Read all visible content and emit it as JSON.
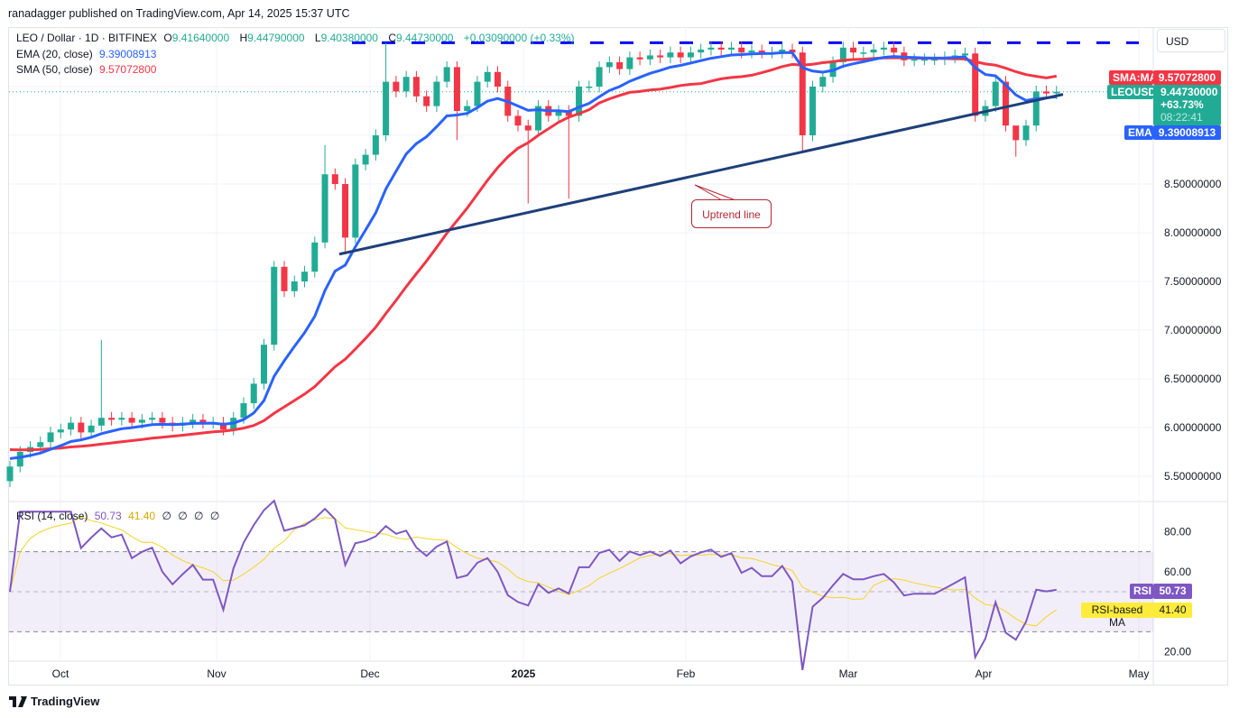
{
  "publisher": "ranadagger published on TradingView.com, Apr 14, 2025 15:37 UTC",
  "legend": {
    "symbol": "LEO / Dollar · 1D · BITFINEX",
    "o_label": "O",
    "open": "9.41640000",
    "h_label": "H",
    "high": "9.44790000",
    "l_label": "L",
    "low": "9.40380000",
    "c_label": "C",
    "close": "9.44730000",
    "change": "+0.03090000 (+0.33%)",
    "ema_label": "EMA (20, close)",
    "ema_value": "9.39008913",
    "sma_label": "SMA (50, close)",
    "sma_value": "9.57072800"
  },
  "currency": "USD",
  "price_tags": {
    "sma_name": "SMA:MA",
    "sma_value": "9.57072800",
    "symbol_name": "LEOUSD",
    "symbol_value": "9.44730000",
    "symbol_change": "+63.73%",
    "countdown": "08:22:41",
    "ema_name": "EMA",
    "ema_value": "9.39008913"
  },
  "rsi_legend": {
    "label": "RSI (14, close)",
    "rsi": "50.73",
    "ma": "41.40",
    "extras": [
      "∅",
      "∅",
      "∅",
      "∅"
    ]
  },
  "rsi_tags": {
    "rsi_name": "RSI",
    "rsi_value": "50.73",
    "ma_name": "RSI-based MA",
    "ma_value": "41.40"
  },
  "annotation": "Uptrend line",
  "brand": "TradingView",
  "colors": {
    "up": "#22ab94",
    "down": "#f23645",
    "ema": "#2962ff",
    "sma": "#f23645",
    "trend": "#1e3f7a",
    "resistance": "#0000ff",
    "rsi": "#7e57c2",
    "rsi_ma": "#f5d327"
  },
  "chart_data": {
    "type": "candlestick",
    "closes": [
      5.6,
      5.75,
      5.8,
      5.85,
      5.95,
      5.98,
      6.05,
      5.95,
      6.02,
      6.1,
      6.08,
      6.1,
      6.05,
      6.08,
      6.1,
      6.05,
      6.02,
      6.05,
      6.08,
      6.05,
      6.05,
      5.98,
      6.1,
      6.25,
      6.45,
      6.85,
      7.65,
      7.4,
      7.5,
      7.6,
      7.9,
      8.6,
      8.5,
      7.95,
      8.7,
      8.8,
      9.0,
      9.55,
      9.45,
      9.6,
      9.4,
      9.3,
      9.55,
      9.7,
      9.25,
      9.3,
      9.55,
      9.65,
      9.5,
      9.2,
      9.1,
      9.05,
      9.3,
      9.2,
      9.25,
      9.2,
      9.5,
      9.5,
      9.7,
      9.75,
      9.68,
      9.8,
      9.78,
      9.82,
      9.8,
      9.85,
      9.8,
      9.85,
      9.88,
      9.9,
      9.88,
      9.9,
      9.85,
      9.87,
      9.85,
      9.85,
      9.88,
      9.85,
      9.0,
      9.5,
      9.6,
      9.75,
      9.9,
      9.85,
      9.85,
      9.88,
      9.9,
      9.85,
      9.77,
      9.78,
      9.78,
      9.78,
      9.8,
      9.82,
      9.84,
      9.2,
      9.3,
      9.55,
      9.1,
      8.95,
      9.1,
      9.45,
      9.43,
      9.4473
    ],
    "price_ticks": [
      "8.50000000",
      "8.00000000",
      "7.50000000",
      "7.00000000",
      "6.50000000",
      "6.00000000",
      "5.50000000"
    ],
    "price_tick_values": [
      8.5,
      8.0,
      7.5,
      7.0,
      6.5,
      6.0,
      5.5
    ],
    "rsi_ticks": [
      "80.00",
      "60.00",
      "20.00"
    ],
    "rsi_tick_values": [
      80,
      60,
      20
    ],
    "rsi_bands": [
      70,
      50,
      30
    ],
    "time_ticks": [
      "Oct",
      "Nov",
      "Dec",
      "2025",
      "Feb",
      "Mar",
      "Apr",
      "May"
    ],
    "resistance": 9.95,
    "uptrend": {
      "from": 7.78,
      "to": 9.42
    },
    "last_price": 9.4473
  }
}
